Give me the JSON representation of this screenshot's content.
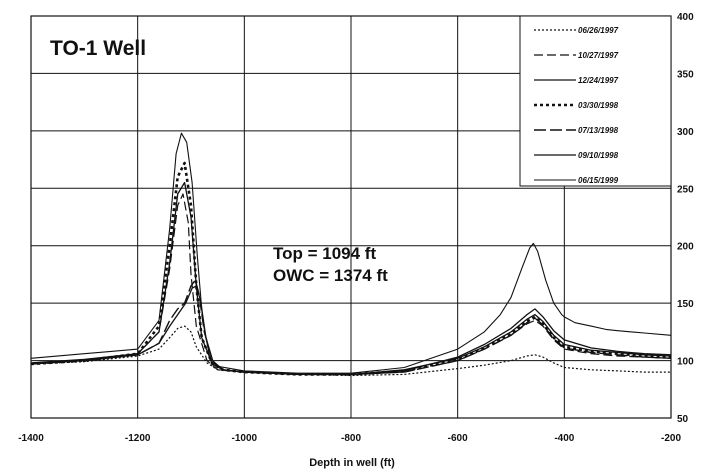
{
  "chart_data": {
    "type": "line",
    "title": "TO-1 Well",
    "xlabel": "Depth in well (ft)",
    "ylabel": "",
    "xlim": [
      -1400,
      -200
    ],
    "ylim": [
      50,
      400
    ],
    "x_ticks": [
      "-1400",
      "-1200",
      "-1000",
      "-800",
      "-600",
      "-400",
      "-200"
    ],
    "y_ticks": [
      "50",
      "100",
      "150",
      "200",
      "250",
      "300",
      "350",
      "400"
    ],
    "y_axis_side": "right",
    "grid": true,
    "legend_position": "top-right",
    "annotations": [
      "Top = 1094 ft",
      "OWC = 1374 ft"
    ],
    "series": [
      {
        "name": "06/26/1997",
        "dash": "2,2",
        "width": 1.2,
        "points": [
          [
            -1400,
            97
          ],
          [
            -1300,
            99
          ],
          [
            -1200,
            104
          ],
          [
            -1160,
            110
          ],
          [
            -1140,
            120
          ],
          [
            -1125,
            128
          ],
          [
            -1112,
            130
          ],
          [
            -1100,
            125
          ],
          [
            -1090,
            112
          ],
          [
            -1070,
            98
          ],
          [
            -1050,
            92
          ],
          [
            -1000,
            90
          ],
          [
            -900,
            88
          ],
          [
            -800,
            87
          ],
          [
            -700,
            88
          ],
          [
            -600,
            93
          ],
          [
            -550,
            96
          ],
          [
            -500,
            100
          ],
          [
            -470,
            104
          ],
          [
            -455,
            105
          ],
          [
            -440,
            103
          ],
          [
            -420,
            98
          ],
          [
            -400,
            94
          ],
          [
            -350,
            92
          ],
          [
            -300,
            91
          ],
          [
            -250,
            90
          ],
          [
            -200,
            90
          ]
        ]
      },
      {
        "name": "10/27/1997",
        "dash": "9,4",
        "width": 1.2,
        "points": [
          [
            -1400,
            97
          ],
          [
            -1300,
            100
          ],
          [
            -1200,
            106
          ],
          [
            -1160,
            125
          ],
          [
            -1140,
            180
          ],
          [
            -1125,
            235
          ],
          [
            -1115,
            245
          ],
          [
            -1105,
            220
          ],
          [
            -1100,
            175
          ],
          [
            -1090,
            130
          ],
          [
            -1070,
            100
          ],
          [
            -1050,
            92
          ],
          [
            -1000,
            90
          ],
          [
            -900,
            88
          ],
          [
            -800,
            88
          ],
          [
            -700,
            90
          ],
          [
            -600,
            100
          ],
          [
            -550,
            110
          ],
          [
            -500,
            122
          ],
          [
            -470,
            132
          ],
          [
            -455,
            135
          ],
          [
            -440,
            130
          ],
          [
            -420,
            118
          ],
          [
            -400,
            110
          ],
          [
            -350,
            106
          ],
          [
            -300,
            104
          ],
          [
            -250,
            103
          ],
          [
            -200,
            102
          ]
        ]
      },
      {
        "name": "12/24/1997",
        "dash": "",
        "width": 1.3,
        "points": [
          [
            -1400,
            98
          ],
          [
            -1300,
            101
          ],
          [
            -1200,
            106
          ],
          [
            -1160,
            125
          ],
          [
            -1140,
            185
          ],
          [
            -1125,
            245
          ],
          [
            -1112,
            255
          ],
          [
            -1100,
            225
          ],
          [
            -1090,
            165
          ],
          [
            -1080,
            120
          ],
          [
            -1060,
            97
          ],
          [
            -1040,
            92
          ],
          [
            -1000,
            90
          ],
          [
            -900,
            88
          ],
          [
            -800,
            88
          ],
          [
            -700,
            92
          ],
          [
            -600,
            102
          ],
          [
            -550,
            112
          ],
          [
            -500,
            125
          ],
          [
            -470,
            136
          ],
          [
            -455,
            140
          ],
          [
            -440,
            134
          ],
          [
            -420,
            122
          ],
          [
            -400,
            114
          ],
          [
            -350,
            109
          ],
          [
            -300,
            107
          ],
          [
            -250,
            105
          ],
          [
            -200,
            104
          ]
        ]
      },
      {
        "name": "03/30/1998",
        "dash": "3,3",
        "width": 2.6,
        "points": [
          [
            -1400,
            97
          ],
          [
            -1300,
            100
          ],
          [
            -1200,
            106
          ],
          [
            -1160,
            130
          ],
          [
            -1140,
            200
          ],
          [
            -1125,
            260
          ],
          [
            -1112,
            272
          ],
          [
            -1100,
            235
          ],
          [
            -1090,
            165
          ],
          [
            -1080,
            120
          ],
          [
            -1060,
            97
          ],
          [
            -1040,
            92
          ],
          [
            -1000,
            90
          ],
          [
            -900,
            88
          ],
          [
            -800,
            88
          ],
          [
            -700,
            91
          ],
          [
            -600,
            101
          ],
          [
            -550,
            111
          ],
          [
            -500,
            123
          ],
          [
            -470,
            134
          ],
          [
            -455,
            138
          ],
          [
            -440,
            132
          ],
          [
            -420,
            120
          ],
          [
            -400,
            112
          ],
          [
            -350,
            108
          ],
          [
            -300,
            106
          ],
          [
            -250,
            104
          ],
          [
            -200,
            103
          ]
        ]
      },
      {
        "name": "07/13/1998",
        "dash": "12,4",
        "width": 1.4,
        "points": [
          [
            -1400,
            97
          ],
          [
            -1300,
            100
          ],
          [
            -1200,
            105
          ],
          [
            -1160,
            115
          ],
          [
            -1140,
            135
          ],
          [
            -1125,
            145
          ],
          [
            -1112,
            150
          ],
          [
            -1100,
            165
          ],
          [
            -1092,
            170
          ],
          [
            -1085,
            158
          ],
          [
            -1075,
            125
          ],
          [
            -1060,
            100
          ],
          [
            -1040,
            92
          ],
          [
            -1000,
            90
          ],
          [
            -900,
            88
          ],
          [
            -800,
            88
          ],
          [
            -700,
            90
          ],
          [
            -600,
            100
          ],
          [
            -550,
            110
          ],
          [
            -500,
            122
          ],
          [
            -470,
            133
          ],
          [
            -455,
            137
          ],
          [
            -440,
            131
          ],
          [
            -420,
            119
          ],
          [
            -400,
            111
          ],
          [
            -350,
            107
          ],
          [
            -300,
            105
          ],
          [
            -250,
            103
          ],
          [
            -200,
            102
          ]
        ]
      },
      {
        "name": "09/10/1998",
        "dash": "",
        "width": 1.3,
        "points": [
          [
            -1400,
            97
          ],
          [
            -1300,
            100
          ],
          [
            -1200,
            105
          ],
          [
            -1160,
            115
          ],
          [
            -1140,
            130
          ],
          [
            -1125,
            140
          ],
          [
            -1110,
            150
          ],
          [
            -1098,
            163
          ],
          [
            -1090,
            165
          ],
          [
            -1082,
            152
          ],
          [
            -1072,
            120
          ],
          [
            -1058,
            98
          ],
          [
            -1040,
            92
          ],
          [
            -1000,
            90
          ],
          [
            -900,
            88
          ],
          [
            -800,
            88
          ],
          [
            -700,
            91
          ],
          [
            -600,
            103
          ],
          [
            -550,
            114
          ],
          [
            -500,
            128
          ],
          [
            -470,
            140
          ],
          [
            -455,
            145
          ],
          [
            -440,
            138
          ],
          [
            -420,
            126
          ],
          [
            -400,
            118
          ],
          [
            -350,
            111
          ],
          [
            -300,
            108
          ],
          [
            -250,
            106
          ],
          [
            -200,
            105
          ]
        ]
      },
      {
        "name": "06/15/1999",
        "dash": "",
        "width": 1.1,
        "points": [
          [
            -1400,
            102
          ],
          [
            -1300,
            106
          ],
          [
            -1250,
            108
          ],
          [
            -1200,
            110
          ],
          [
            -1160,
            135
          ],
          [
            -1140,
            215
          ],
          [
            -1128,
            280
          ],
          [
            -1118,
            298
          ],
          [
            -1108,
            290
          ],
          [
            -1098,
            255
          ],
          [
            -1088,
            190
          ],
          [
            -1078,
            135
          ],
          [
            -1065,
            103
          ],
          [
            -1050,
            95
          ],
          [
            -1000,
            91
          ],
          [
            -900,
            89
          ],
          [
            -800,
            89
          ],
          [
            -700,
            94
          ],
          [
            -600,
            110
          ],
          [
            -550,
            125
          ],
          [
            -520,
            140
          ],
          [
            -500,
            155
          ],
          [
            -480,
            180
          ],
          [
            -465,
            198
          ],
          [
            -458,
            202
          ],
          [
            -450,
            195
          ],
          [
            -435,
            170
          ],
          [
            -420,
            150
          ],
          [
            -405,
            140
          ],
          [
            -400,
            138
          ],
          [
            -380,
            133
          ],
          [
            -350,
            130
          ],
          [
            -320,
            127
          ],
          [
            -300,
            126
          ],
          [
            -250,
            124
          ],
          [
            -200,
            122
          ]
        ]
      }
    ]
  }
}
